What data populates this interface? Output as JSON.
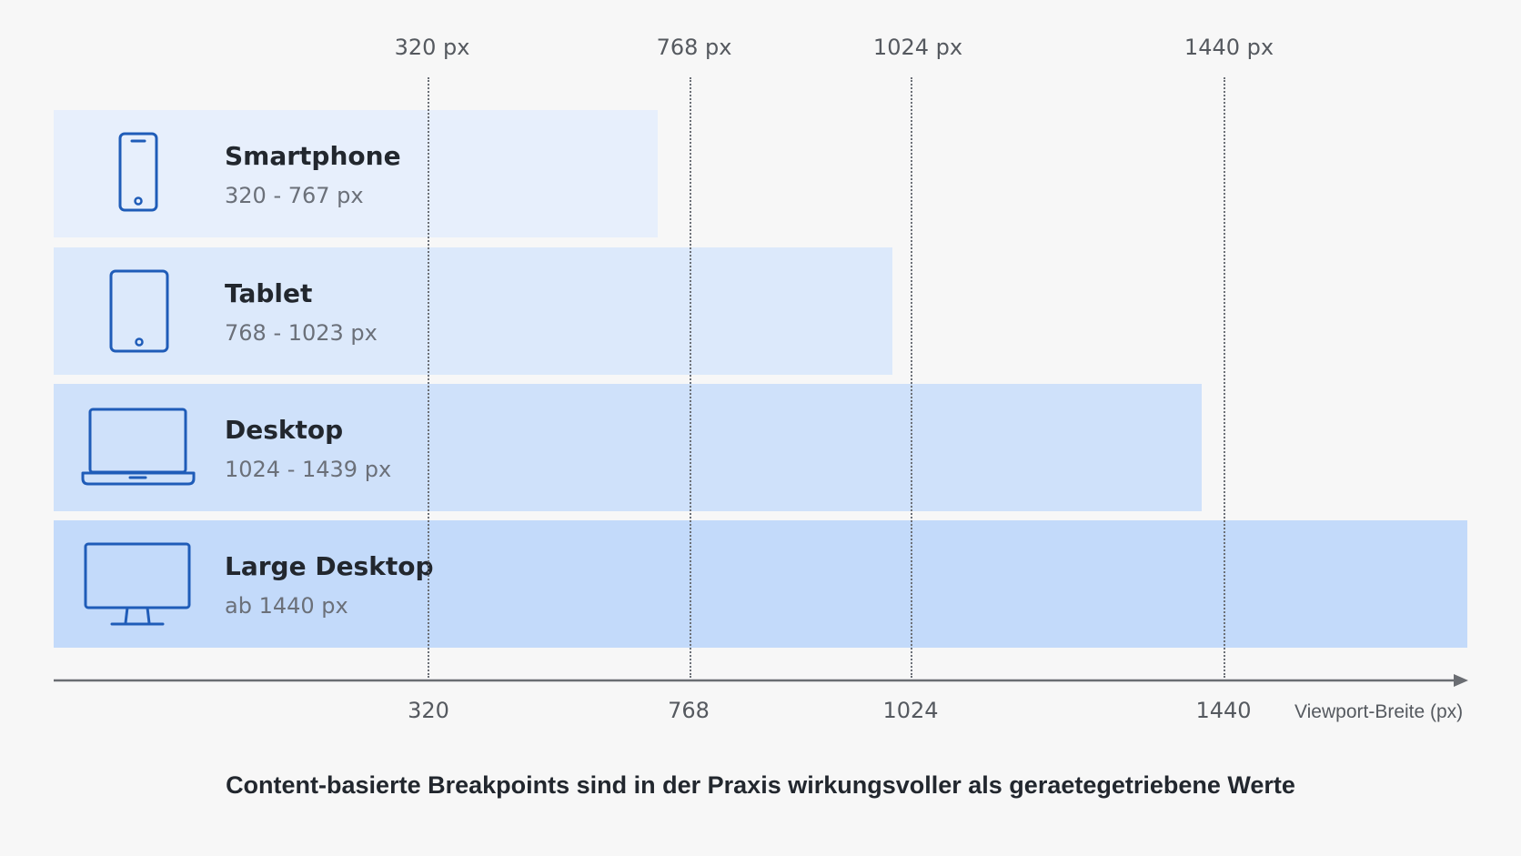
{
  "breakpoints": [
    {
      "value": 320,
      "top_label": "320 px",
      "tick_label": "320"
    },
    {
      "value": 768,
      "top_label": "768 px",
      "tick_label": "768"
    },
    {
      "value": 1024,
      "top_label": "1024 px",
      "tick_label": "1024"
    },
    {
      "value": 1440,
      "top_label": "1440 px",
      "tick_label": "1440"
    }
  ],
  "devices": [
    {
      "label": "Smartphone",
      "range": "320 - 767 px",
      "icon": "smartphone-icon",
      "color": "#e7effc"
    },
    {
      "label": "Tablet",
      "range": "768 - 1023 px",
      "icon": "tablet-icon",
      "color": "#dce9fb"
    },
    {
      "label": "Desktop",
      "range": "1024 - 1439 px",
      "icon": "laptop-icon",
      "color": "#cfe1fa"
    },
    {
      "label": "Large Desktop",
      "range": "ab 1440 px",
      "icon": "monitor-icon",
      "color": "#c3dafa"
    }
  ],
  "axis": {
    "title": "Viewport-Breite (px)"
  },
  "caption": "Content-basierte Breakpoints sind in der Praxis wirkungsvoller als geraetegetriebene Werte",
  "colors": {
    "icon": "#1f5cb8",
    "guide": "#6b6f76",
    "axis": "#6a6d72",
    "text": "#22272e"
  }
}
